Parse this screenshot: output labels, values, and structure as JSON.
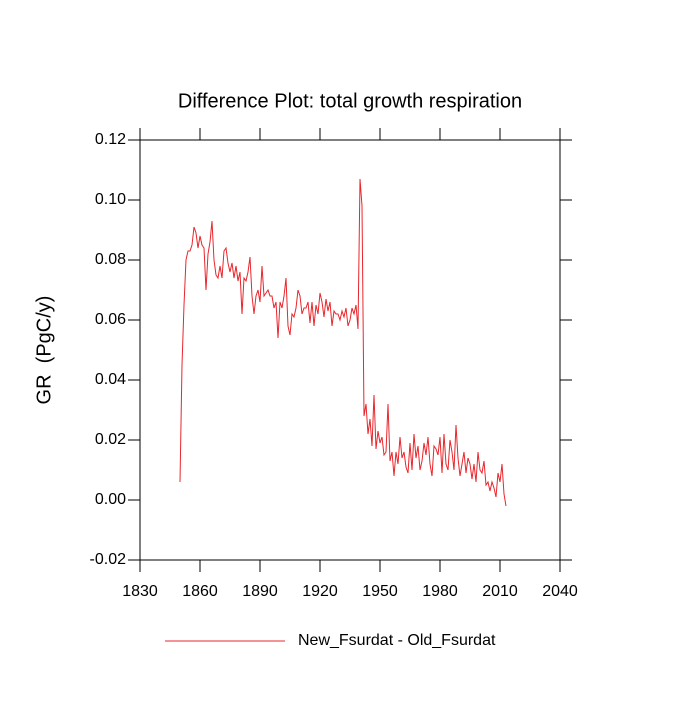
{
  "chart_data": {
    "type": "line",
    "title": "Difference Plot: total growth respiration",
    "y_label": "GR  (PgC/y)",
    "x": [
      1850,
      1851,
      1852,
      1853,
      1854,
      1855,
      1856,
      1857,
      1858,
      1859,
      1860,
      1861,
      1862,
      1863,
      1864,
      1865,
      1866,
      1867,
      1868,
      1869,
      1870,
      1871,
      1872,
      1873,
      1874,
      1875,
      1876,
      1877,
      1878,
      1879,
      1880,
      1881,
      1882,
      1883,
      1884,
      1885,
      1886,
      1887,
      1888,
      1889,
      1890,
      1891,
      1892,
      1893,
      1894,
      1895,
      1896,
      1897,
      1898,
      1899,
      1900,
      1901,
      1902,
      1903,
      1904,
      1905,
      1906,
      1907,
      1908,
      1909,
      1910,
      1911,
      1912,
      1913,
      1914,
      1915,
      1916,
      1917,
      1918,
      1919,
      1920,
      1921,
      1922,
      1923,
      1924,
      1925,
      1926,
      1927,
      1928,
      1929,
      1930,
      1931,
      1932,
      1933,
      1934,
      1935,
      1936,
      1937,
      1938,
      1939,
      1940,
      1941,
      1942,
      1943,
      1944,
      1945,
      1946,
      1947,
      1948,
      1949,
      1950,
      1951,
      1952,
      1953,
      1954,
      1955,
      1956,
      1957,
      1958,
      1959,
      1960,
      1961,
      1962,
      1963,
      1964,
      1965,
      1966,
      1967,
      1968,
      1969,
      1970,
      1971,
      1972,
      1973,
      1974,
      1975,
      1976,
      1977,
      1978,
      1979,
      1980,
      1981,
      1982,
      1983,
      1984,
      1985,
      1986,
      1987,
      1988,
      1989,
      1990,
      1991,
      1992,
      1993,
      1994,
      1995,
      1996,
      1997,
      1998,
      1999,
      2000,
      2001,
      2002,
      2003,
      2004,
      2005,
      2006,
      2007,
      2008,
      2009,
      2010,
      2011,
      2012,
      2013
    ],
    "series": [
      {
        "name": "New_Fsurdat - Old_Fsurdat",
        "color": "#e8262c",
        "values": [
          0.006,
          0.045,
          0.065,
          0.08,
          0.083,
          0.083,
          0.085,
          0.091,
          0.089,
          0.084,
          0.088,
          0.085,
          0.084,
          0.07,
          0.082,
          0.086,
          0.093,
          0.08,
          0.075,
          0.074,
          0.078,
          0.074,
          0.083,
          0.084,
          0.079,
          0.076,
          0.079,
          0.074,
          0.078,
          0.073,
          0.076,
          0.062,
          0.074,
          0.073,
          0.076,
          0.081,
          0.068,
          0.062,
          0.068,
          0.07,
          0.066,
          0.078,
          0.068,
          0.069,
          0.07,
          0.068,
          0.068,
          0.064,
          0.066,
          0.054,
          0.066,
          0.064,
          0.068,
          0.074,
          0.058,
          0.055,
          0.062,
          0.061,
          0.064,
          0.07,
          0.068,
          0.062,
          0.064,
          0.064,
          0.066,
          0.059,
          0.066,
          0.058,
          0.065,
          0.062,
          0.069,
          0.066,
          0.061,
          0.067,
          0.063,
          0.066,
          0.058,
          0.063,
          0.062,
          0.062,
          0.06,
          0.063,
          0.061,
          0.064,
          0.058,
          0.06,
          0.064,
          0.062,
          0.065,
          0.057,
          0.107,
          0.098,
          0.028,
          0.032,
          0.022,
          0.027,
          0.018,
          0.035,
          0.017,
          0.023,
          0.019,
          0.021,
          0.015,
          0.016,
          0.032,
          0.013,
          0.016,
          0.008,
          0.016,
          0.012,
          0.021,
          0.014,
          0.016,
          0.011,
          0.009,
          0.019,
          0.01,
          0.022,
          0.014,
          0.018,
          0.01,
          0.013,
          0.019,
          0.015,
          0.021,
          0.012,
          0.008,
          0.018,
          0.017,
          0.015,
          0.021,
          0.009,
          0.022,
          0.012,
          0.01,
          0.02,
          0.016,
          0.01,
          0.025,
          0.014,
          0.008,
          0.012,
          0.016,
          0.009,
          0.014,
          0.012,
          0.007,
          0.012,
          0.006,
          0.016,
          0.01,
          0.009,
          0.013,
          0.005,
          0.006,
          0.003,
          0.006,
          0.004,
          0.001,
          0.009,
          0.006,
          0.012,
          0.002,
          -0.002
        ]
      }
    ],
    "xlim": [
      1830,
      2040
    ],
    "xticks": [
      1830,
      1860,
      1890,
      1920,
      1950,
      1980,
      2010,
      2040
    ],
    "ylim": [
      -0.02,
      0.12
    ],
    "yticks": [
      -0.02,
      {
        "value": 0,
        "label": "0.00"
      },
      0.02,
      0.04,
      0.06,
      0.08,
      {
        "value": 0.1,
        "label": "0.10"
      },
      0.12
    ],
    "legend": "bottom"
  }
}
